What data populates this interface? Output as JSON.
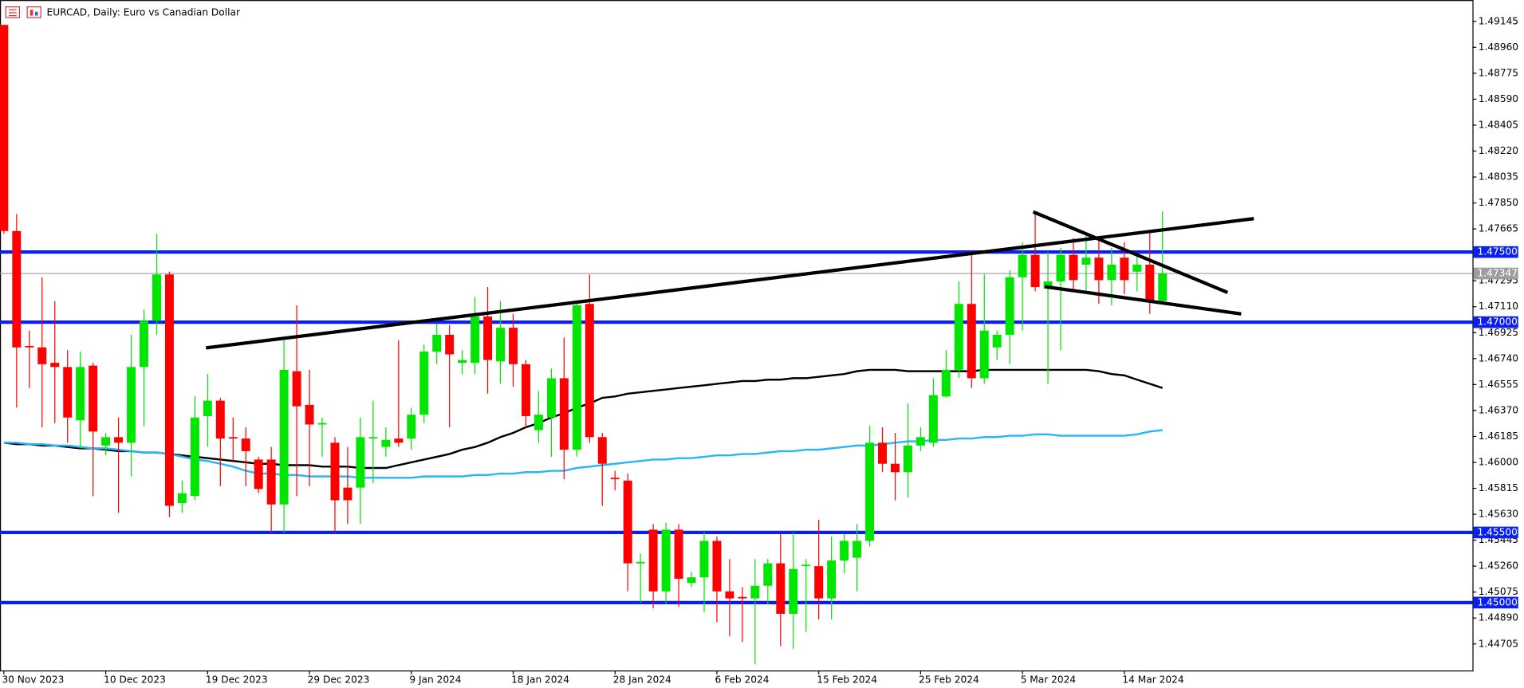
{
  "chart_data": {
    "type": "candlestick",
    "title": "EURCAD, Daily:  Euro vs Canadian Dollar",
    "categories": [
      "30 Nov 2023",
      null,
      null,
      null,
      null,
      null,
      null,
      null,
      "10 Dec 2023",
      null,
      null,
      null,
      null,
      null,
      null,
      null,
      "19 Dec 2023",
      null,
      null,
      null,
      null,
      null,
      null,
      null,
      "29 Dec 2023",
      null,
      null,
      null,
      null,
      null,
      null,
      null,
      "9 Jan 2024",
      null,
      null,
      null,
      null,
      null,
      null,
      null,
      "18 Jan 2024",
      null,
      null,
      null,
      null,
      null,
      null,
      null,
      "28 Jan 2024",
      null,
      null,
      null,
      null,
      null,
      null,
      null,
      "6 Feb 2024",
      null,
      null,
      null,
      null,
      null,
      null,
      null,
      "15 Feb 2024",
      null,
      null,
      null,
      null,
      null,
      null,
      null,
      "25 Feb 2024",
      null,
      null,
      null,
      null,
      null,
      null,
      null,
      "5 Mar 2024",
      null,
      null,
      null,
      null,
      null,
      null,
      null,
      "14 Mar 2024",
      null,
      null,
      null
    ],
    "open": [
      1.4912,
      1.4765,
      1.4683,
      1.4682,
      1.4671,
      1.4668,
      1.463,
      1.4669,
      1.4612,
      1.4618,
      1.4614,
      1.4668,
      1.4701,
      1.4734,
      1.4571,
      1.4576,
      1.4633,
      1.4644,
      1.4618,
      1.4617,
      1.4602,
      1.4602,
      1.457,
      1.4665,
      1.4641,
      1.4627,
      1.4614,
      1.4582,
      1.4582,
      1.4617,
      1.4611,
      1.4617,
      1.4617,
      1.4634,
      1.4679,
      1.4691,
      1.4671,
      1.4671,
      1.4704,
      1.4672,
      1.4696,
      1.467,
      1.4623,
      1.4632,
      1.466,
      1.4609,
      1.4713,
      1.4618,
      1.4589,
      1.4587,
      1.4528,
      1.4552,
      1.4508,
      1.4552,
      1.4514,
      1.4518,
      1.4544,
      1.4508,
      1.4504,
      1.4503,
      1.4512,
      1.4528,
      1.4492,
      1.4526,
      1.4526,
      1.4503,
      1.453,
      1.4532,
      1.4544,
      1.4614,
      1.4599,
      1.4593,
      1.4612,
      1.4614,
      1.4647,
      1.4666,
      1.4713,
      1.466,
      1.4682,
      1.4691,
      1.4732,
      1.4748,
      1.4724,
      1.4729,
      1.4748,
      1.4741,
      1.4746,
      1.473,
      1.4746,
      1.4736,
      1.4741,
      1.4715
    ],
    "high": [
      1.4912,
      1.4777,
      1.4694,
      1.4732,
      1.4715,
      1.468,
      1.4679,
      1.4671,
      1.4621,
      1.4632,
      1.4691,
      1.4709,
      1.4763,
      1.4736,
      1.4587,
      1.4647,
      1.4663,
      1.4646,
      1.4632,
      1.4625,
      1.4604,
      1.4611,
      1.4687,
      1.4712,
      1.4666,
      1.4632,
      1.4618,
      1.4611,
      1.4632,
      1.4644,
      1.4625,
      1.4687,
      1.4639,
      1.4684,
      1.4699,
      1.4698,
      1.468,
      1.4718,
      1.4725,
      1.4715,
      1.4706,
      1.4673,
      1.4651,
      1.4667,
      1.4689,
      1.4714,
      1.4734,
      1.4621,
      1.4594,
      1.4592,
      1.4535,
      1.4556,
      1.4557,
      1.4556,
      1.4522,
      1.455,
      1.4547,
      1.4531,
      1.4511,
      1.4531,
      1.4531,
      1.4549,
      1.455,
      1.4531,
      1.4559,
      1.4547,
      1.4549,
      1.4556,
      1.4626,
      1.4625,
      1.4621,
      1.4642,
      1.4625,
      1.466,
      1.468,
      1.4729,
      1.4748,
      1.4734,
      1.4694,
      1.4737,
      1.4757,
      1.4779,
      1.475,
      1.4753,
      1.476,
      1.4763,
      1.4761,
      1.4753,
      1.4757,
      1.4748,
      1.4766,
      1.4779
    ],
    "low": [
      1.4763,
      1.4639,
      1.4653,
      1.4625,
      1.4628,
      1.4614,
      1.461,
      1.4576,
      1.4605,
      1.4564,
      1.459,
      1.4626,
      1.4691,
      1.4561,
      1.4564,
      1.4573,
      1.4611,
      1.4583,
      1.4601,
      1.4583,
      1.4578,
      1.455,
      1.455,
      1.4576,
      1.4583,
      1.4604,
      1.4549,
      1.4556,
      1.4556,
      1.4585,
      1.4604,
      1.4611,
      1.4609,
      1.4628,
      1.467,
      1.4625,
      1.4663,
      1.4663,
      1.4649,
      1.4656,
      1.4654,
      1.4625,
      1.4614,
      1.4604,
      1.4588,
      1.4604,
      1.4614,
      1.4569,
      1.458,
      1.4508,
      1.45,
      1.4496,
      1.4499,
      1.4497,
      1.4511,
      1.4493,
      1.4486,
      1.4476,
      1.4472,
      1.4456,
      1.4499,
      1.4469,
      1.4467,
      1.4479,
      1.4488,
      1.4488,
      1.4521,
      1.4508,
      1.454,
      1.4593,
      1.4573,
      1.4575,
      1.4608,
      1.4611,
      1.4646,
      1.466,
      1.4653,
      1.4656,
      1.4673,
      1.467,
      1.4694,
      1.4722,
      1.4656,
      1.468,
      1.4723,
      1.4722,
      1.4713,
      1.4712,
      1.472,
      1.4722,
      1.4706,
      1.4713
    ],
    "close": [
      1.4765,
      1.4682,
      1.4682,
      1.467,
      1.4668,
      1.4632,
      1.4668,
      1.4622,
      1.4618,
      1.4614,
      1.4668,
      1.4701,
      1.4734,
      1.4569,
      1.4578,
      1.4632,
      1.4644,
      1.4617,
      1.4617,
      1.4608,
      1.4581,
      1.457,
      1.4666,
      1.464,
      1.4627,
      1.4628,
      1.4573,
      1.4573,
      1.4618,
      1.4618,
      1.4616,
      1.4614,
      1.4634,
      1.4679,
      1.4691,
      1.4677,
      1.4673,
      1.4704,
      1.4673,
      1.4696,
      1.467,
      1.4633,
      1.4634,
      1.466,
      1.4609,
      1.4712,
      1.4618,
      1.4599,
      1.4588,
      1.4528,
      1.4529,
      1.4508,
      1.4552,
      1.4517,
      1.4518,
      1.4544,
      1.4508,
      1.4503,
      1.4503,
      1.4512,
      1.4528,
      1.4492,
      1.4524,
      1.4527,
      1.4503,
      1.453,
      1.4544,
      1.4544,
      1.4614,
      1.4599,
      1.4593,
      1.4612,
      1.4618,
      1.4648,
      1.4666,
      1.4713,
      1.466,
      1.4694,
      1.4691,
      1.4732,
      1.4748,
      1.4725,
      1.4729,
      1.4748,
      1.473,
      1.4746,
      1.473,
      1.4741,
      1.473,
      1.4741,
      1.4715,
      1.47347
    ],
    "up_color": "#00e600",
    "down_color": "#ff0000",
    "moving_averages": [
      {
        "color": "#000000",
        "values": [
          1.4614,
          1.4613,
          1.4613,
          1.4612,
          1.4612,
          1.4611,
          1.461,
          1.461,
          1.4609,
          1.4608,
          1.4608,
          1.4607,
          1.4607,
          1.4606,
          1.4605,
          1.4604,
          1.4603,
          1.4602,
          1.4601,
          1.46,
          1.4599,
          1.4599,
          1.4598,
          1.4598,
          1.4598,
          1.4597,
          1.4597,
          1.4597,
          1.4596,
          1.4596,
          1.4596,
          1.4598,
          1.46,
          1.4602,
          1.4604,
          1.4606,
          1.4609,
          1.4611,
          1.4614,
          1.4618,
          1.4621,
          1.4625,
          1.4628,
          1.4632,
          1.4635,
          1.4639,
          1.4642,
          1.4646,
          1.4647,
          1.4649,
          1.465,
          1.4651,
          1.4652,
          1.4653,
          1.4654,
          1.4655,
          1.4656,
          1.4657,
          1.4658,
          1.4658,
          1.4659,
          1.4659,
          1.466,
          1.466,
          1.4661,
          1.4662,
          1.4663,
          1.4665,
          1.4666,
          1.4666,
          1.4666,
          1.4665,
          1.4665,
          1.4665,
          1.4665,
          1.4665,
          1.4665,
          1.4666,
          1.4666,
          1.4666,
          1.4666,
          1.4666,
          1.4666,
          1.4666,
          1.4666,
          1.4666,
          1.4665,
          1.4663,
          1.4662,
          1.4659,
          1.4656,
          1.4653
        ]
      },
      {
        "color": "#29b6f6",
        "values": [
          1.4614,
          1.4614,
          1.4613,
          1.4613,
          1.4612,
          1.4612,
          1.4611,
          1.461,
          1.461,
          1.4609,
          1.4608,
          1.4607,
          1.4607,
          1.4606,
          1.4604,
          1.4602,
          1.4601,
          1.4599,
          1.4597,
          1.4594,
          1.4592,
          1.4592,
          1.4591,
          1.4591,
          1.459,
          1.459,
          1.459,
          1.459,
          1.4589,
          1.4589,
          1.4589,
          1.4589,
          1.4589,
          1.459,
          1.459,
          1.459,
          1.459,
          1.4591,
          1.4591,
          1.4592,
          1.4592,
          1.4593,
          1.4593,
          1.4594,
          1.4594,
          1.4596,
          1.4597,
          1.4598,
          1.4599,
          1.46,
          1.4601,
          1.4602,
          1.4602,
          1.4603,
          1.4603,
          1.4604,
          1.4605,
          1.4605,
          1.4606,
          1.4606,
          1.4607,
          1.4608,
          1.4608,
          1.4609,
          1.4609,
          1.461,
          1.4611,
          1.4612,
          1.4612,
          1.4613,
          1.4614,
          1.4615,
          1.4615,
          1.4616,
          1.4616,
          1.4617,
          1.4617,
          1.4618,
          1.4618,
          1.4619,
          1.4619,
          1.462,
          1.462,
          1.4619,
          1.4619,
          1.4619,
          1.4619,
          1.4619,
          1.4619,
          1.462,
          1.4622,
          1.4623
        ]
      }
    ],
    "levels": [
      {
        "value": 1.475,
        "label": "1.47500"
      },
      {
        "value": 1.47,
        "label": "1.47000"
      },
      {
        "value": 1.455,
        "label": "1.45500"
      },
      {
        "value": 1.45,
        "label": "1.45000"
      }
    ],
    "level_color": "#0a1ff0",
    "last_price": {
      "value": 1.47347,
      "label": "1.47347"
    },
    "ylim": [
      1.44516,
      1.49297
    ],
    "yticks": [
      1.49145,
      {
        "value": 1.4896,
        "label": "1.48960"
      },
      1.48775,
      {
        "value": 1.4859,
        "label": "1.48590"
      },
      1.48405,
      {
        "value": 1.4822,
        "label": "1.48220"
      },
      1.48035,
      {
        "value": 1.4785,
        "label": "1.47850"
      },
      1.47665,
      1.47295,
      {
        "value": 1.4711,
        "label": "1.47110"
      },
      1.46925,
      {
        "value": 1.4674,
        "label": "1.46740"
      },
      1.46555,
      {
        "value": 1.4637,
        "label": "1.46370"
      },
      1.46185,
      {
        "value": 1.46,
        "label": "1.46000"
      },
      1.45815,
      {
        "value": 1.4563,
        "label": "1.45630"
      },
      1.45445,
      {
        "value": 1.4526,
        "label": "1.45260"
      },
      1.45075,
      {
        "value": 1.4489,
        "label": "1.44890"
      },
      1.44705
    ]
  }
}
